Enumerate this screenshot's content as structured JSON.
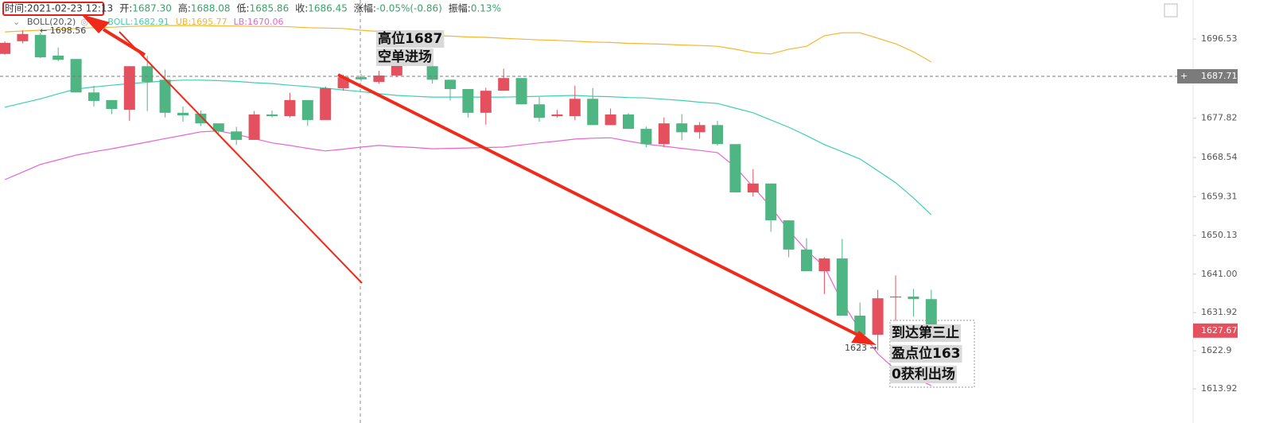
{
  "chart_data": {
    "type": "candlestick",
    "header": [
      {
        "label": "时间:",
        "value": "2021-02-23 12:13"
      },
      {
        "label": "开:",
        "value": "1687.30"
      },
      {
        "label": "高:",
        "value": "1688.08"
      },
      {
        "label": "低:",
        "value": "1685.86"
      },
      {
        "label": "收:",
        "value": "1686.45"
      },
      {
        "label": "涨幅:",
        "value": "-0.05%(-0.86)"
      },
      {
        "label": "振幅:",
        "value": "0.13%"
      }
    ],
    "indicator": "BOLL(20,2)",
    "up_color": "#e5505e",
    "down_color": "#4fb583",
    "open": [
      1693.0,
      1696.0,
      1697.5,
      1692.6,
      1691.8,
      1683.9,
      1682.1,
      1679.8,
      1690.1,
      1686.9,
      1679.1,
      1678.9,
      1676.6,
      1674.7,
      1672.7,
      1678.7,
      1678.3,
      1682.1,
      1677.4,
      1684.9,
      1687.5,
      1686.4,
      1687.9,
      null,
      1690.1,
      1686.9,
      1684.7,
      1679.1,
      1684.3,
      1687.3,
      1681.1,
      1678.3,
      1678.3,
      1682.4,
      1676.2,
      1678.7,
      1675.3,
      1671.7,
      1676.6,
      1674.5,
      1676.2,
      1671.7,
      1660.3,
      1662.4,
      1653.7,
      1646.8,
      1641.7,
      1644.7,
      1631.2,
      1626.7,
      1635.5,
      1635.7,
      1635.1
    ],
    "high": [
      1696.0,
      1698.56,
      1698.0,
      1694.5,
      1691.8,
      1685.5,
      1682.1,
      1690.1,
      1692.5,
      1689.3,
      1680.6,
      1679.6,
      1676.6,
      1675.8,
      1679.5,
      1679.6,
      1683.8,
      1682.1,
      1685.3,
      1688.1,
      1688.3,
      1689.0,
      1693.5,
      null,
      1691.0,
      1686.9,
      1684.7,
      1685.0,
      1689.5,
      1687.3,
      1682.8,
      1679.8,
      1685.5,
      1684.9,
      1680.1,
      1679.0,
      1675.8,
      1678.0,
      1678.8,
      1676.9,
      1677.2,
      1671.7,
      1665.8,
      1662.4,
      1653.7,
      1649.5,
      1645.0,
      1649.3,
      1634.3,
      1637.3,
      1640.7,
      1637.5,
      1637.3
    ],
    "low": [
      1692.8,
      1695.5,
      1692.0,
      1691.3,
      1683.9,
      1680.6,
      1678.8,
      1677.2,
      1679.5,
      1678.0,
      1677.0,
      1676.0,
      1674.2,
      1671.5,
      1672.7,
      1678.0,
      1678.0,
      1676.0,
      1677.4,
      1684.3,
      1686.5,
      1686.0,
      1687.5,
      null,
      1686.0,
      1682.0,
      1678.0,
      1676.3,
      1684.3,
      1681.1,
      1677.0,
      1678.0,
      1677.4,
      1676.2,
      1676.2,
      1675.3,
      1671.0,
      1671.0,
      1672.6,
      1673.0,
      1671.4,
      1660.3,
      1659.3,
      1651.0,
      1645.0,
      1641.7,
      1636.3,
      1631.2,
      1623.0,
      1623.0,
      1630.0,
      1631.0,
      1627.0
    ],
    "close": [
      1695.6,
      1697.7,
      1692.2,
      1691.6,
      1683.9,
      1681.9,
      1680.0,
      1690.1,
      1686.4,
      1679.1,
      1678.5,
      1676.6,
      1674.7,
      1672.7,
      1678.7,
      1678.3,
      1682.1,
      1677.4,
      1684.9,
      1687.5,
      1687.0,
      1687.9,
      1692.6,
      null,
      1686.9,
      1684.7,
      1679.1,
      1684.3,
      1687.3,
      1681.1,
      1677.9,
      1678.7,
      1682.4,
      1676.2,
      1678.7,
      1675.3,
      1671.7,
      1676.6,
      1674.5,
      1676.2,
      1671.7,
      1660.3,
      1662.4,
      1653.7,
      1646.8,
      1641.7,
      1644.7,
      1631.2,
      1626.7,
      1635.3,
      1635.7,
      1635.1,
      1628.0
    ],
    "series": [
      {
        "name": "BOLL:1682.91",
        "color": "#3fcfb0",
        "values": [
          1680.4,
          1681.4,
          1682.4,
          1683.6,
          1684.7,
          1685.2,
          1685.6,
          1686.0,
          1686.3,
          1686.6,
          1686.8,
          1686.8,
          1686.7,
          1686.5,
          1686.2,
          1686.0,
          1685.6,
          1685.3,
          1684.9,
          1684.5,
          1684.1,
          1683.6,
          1683.2,
          1683.0,
          1682.8,
          1682.8,
          1682.8,
          1682.8,
          1682.8,
          1682.9,
          1683.0,
          1683.1,
          1683.2,
          1683.0,
          1682.9,
          1682.7,
          1682.6,
          1682.3,
          1682.0,
          1681.6,
          1681.3,
          1680.2,
          1679.1,
          1677.4,
          1675.7,
          1673.7,
          1671.6,
          1669.9,
          1668.2,
          1665.4,
          1662.6,
          1659.0,
          1655.0
        ]
      },
      {
        "name": "UB:1695.77",
        "color": "#f5b52e",
        "values": [
          1698.2,
          1698.4,
          1698.6,
          1698.8,
          1699.0,
          1699.2,
          1699.3,
          1699.5,
          1699.6,
          1699.7,
          1699.7,
          1699.7,
          1699.6,
          1699.6,
          1699.5,
          1699.5,
          1699.4,
          1699.2,
          1699.1,
          1699.0,
          1698.6,
          1698.3,
          1697.9,
          1697.6,
          1697.3,
          1697.2,
          1697.0,
          1696.9,
          1696.7,
          1696.5,
          1696.3,
          1696.2,
          1696.0,
          1695.8,
          1695.7,
          1695.5,
          1695.4,
          1695.3,
          1695.1,
          1695.0,
          1694.8,
          1694.1,
          1693.3,
          1693.0,
          1694.1,
          1694.8,
          1697.3,
          1698.0,
          1698.0,
          1696.7,
          1695.4,
          1693.5,
          1691.1
        ]
      },
      {
        "name": "LB:1670.06",
        "color": "#e864cf",
        "values": [
          1663.3,
          1665.1,
          1666.9,
          1668.0,
          1669.1,
          1669.9,
          1670.6,
          1671.4,
          1672.2,
          1673.0,
          1673.8,
          1674.6,
          1674.8,
          1674.0,
          1673.0,
          1672.0,
          1671.4,
          1670.7,
          1670.1,
          1670.5,
          1671.0,
          1671.4,
          1671.1,
          1670.9,
          1670.6,
          1670.7,
          1670.8,
          1670.9,
          1671.0,
          1671.5,
          1672.0,
          1672.4,
          1672.9,
          1673.1,
          1673.2,
          1672.4,
          1671.7,
          1671.2,
          1670.7,
          1670.2,
          1669.7,
          1666.3,
          1661.6,
          1656.9,
          1651.3,
          1646.6,
          1642.8,
          1634.4,
          1627.8,
          1622.2,
          1618.4,
          1616.6,
          1614.7
        ]
      }
    ],
    "ylim": [
      1605.85,
      1705.73
    ],
    "yticks": [
      1696.53,
      1677.82,
      1668.54,
      1659.31,
      1650.13,
      {
        "value": 1641,
        "label": "1641.00"
      },
      1631.92,
      1622.9,
      1613.92
    ],
    "price_lines": [
      {
        "value": 1687.71,
        "color": "#7b7b7b"
      },
      {
        "value": 1627.67,
        "color": "#e5505e"
      }
    ],
    "high_marker": "← 1698.56",
    "low_marker": "1623 →",
    "annotations": [
      {
        "lines": [
          "高位1687",
          "空单进场"
        ]
      },
      {
        "lines": [
          "到达第三止",
          "盈点位163",
          "0获利出场"
        ]
      }
    ]
  }
}
